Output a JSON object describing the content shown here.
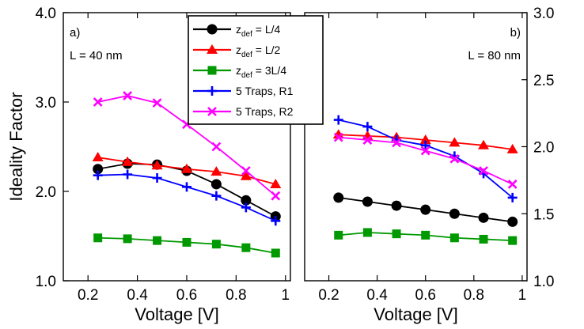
{
  "chart_data": [
    {
      "type": "line",
      "panel_label": "a)",
      "annotation": "L = 40 nm",
      "xlabel": "Voltage [V]",
      "ylabel": "Ideality Factor",
      "xlim": [
        0.1,
        1.02
      ],
      "ylim": [
        1.0,
        4.0
      ],
      "x_ticks": [
        "0.2",
        "0.4",
        "0.6",
        "0.8",
        "1"
      ],
      "y_ticks": [
        "1.0",
        "2.0",
        "3.0",
        "4.0"
      ],
      "x": [
        0.24,
        0.36,
        0.48,
        0.6,
        0.72,
        0.84,
        0.96
      ],
      "series": [
        {
          "name": "zdef = L/4",
          "color": "#000000",
          "marker": "circle",
          "values": [
            2.25,
            2.31,
            2.3,
            2.23,
            2.08,
            1.9,
            1.72
          ]
        },
        {
          "name": "zdef = L/2",
          "color": "#ff0000",
          "marker": "triangle",
          "values": [
            2.38,
            2.33,
            2.29,
            2.25,
            2.22,
            2.17,
            2.08
          ]
        },
        {
          "name": "zdef = 3L/4",
          "color": "#009900",
          "marker": "square",
          "values": [
            1.48,
            1.47,
            1.45,
            1.43,
            1.41,
            1.37,
            1.31
          ]
        },
        {
          "name": "5 Traps, R1",
          "color": "#0000ff",
          "marker": "plus",
          "values": [
            2.18,
            2.19,
            2.15,
            2.05,
            1.95,
            1.82,
            1.67
          ]
        },
        {
          "name": "5 Traps, R2",
          "color": "#ff00ff",
          "marker": "x",
          "values": [
            3.0,
            3.07,
            2.99,
            2.75,
            2.5,
            2.23,
            1.95
          ]
        }
      ]
    },
    {
      "type": "line",
      "panel_label": "b)",
      "annotation": "L = 80 nm",
      "xlabel": "Voltage [V]",
      "ylabel": "",
      "xlim": [
        0.1,
        1.02
      ],
      "ylim": [
        1.0,
        3.0
      ],
      "x_ticks": [
        "0.2",
        "0.4",
        "0.6",
        "0.8",
        "1"
      ],
      "y_ticks": [
        "1.0",
        "1.5",
        "2.0",
        "2.5",
        "3.0"
      ],
      "x": [
        0.24,
        0.36,
        0.48,
        0.6,
        0.72,
        0.84,
        0.96
      ],
      "series": [
        {
          "name": "zdef = L/4",
          "color": "#000000",
          "marker": "circle",
          "values": [
            1.62,
            1.59,
            1.56,
            1.53,
            1.5,
            1.47,
            1.44
          ]
        },
        {
          "name": "zdef = L/2",
          "color": "#ff0000",
          "marker": "triangle",
          "values": [
            2.09,
            2.08,
            2.07,
            2.05,
            2.03,
            2.01,
            1.98
          ]
        },
        {
          "name": "zdef = 3L/4",
          "color": "#009900",
          "marker": "square",
          "values": [
            1.34,
            1.36,
            1.35,
            1.34,
            1.32,
            1.31,
            1.3
          ]
        },
        {
          "name": "5 Traps, R1",
          "color": "#0000ff",
          "marker": "plus",
          "values": [
            2.2,
            2.15,
            2.05,
            2.01,
            1.93,
            1.8,
            1.62
          ]
        },
        {
          "name": "5 Traps, R2",
          "color": "#ff00ff",
          "marker": "x",
          "values": [
            2.07,
            2.05,
            2.03,
            1.97,
            1.91,
            1.82,
            1.72
          ]
        }
      ]
    }
  ],
  "legend": [
    {
      "main": "z",
      "sub": "def",
      "rest": " = L/4",
      "color": "#000000",
      "marker": "circle"
    },
    {
      "main": "z",
      "sub": "def",
      "rest": " = L/2",
      "color": "#ff0000",
      "marker": "triangle"
    },
    {
      "main": "z",
      "sub": "def",
      "rest": " = 3L/4",
      "color": "#009900",
      "marker": "square"
    },
    {
      "main": "5 Traps, R1",
      "sub": "",
      "rest": "",
      "color": "#0000ff",
      "marker": "plus"
    },
    {
      "main": "5 Traps, R2",
      "sub": "",
      "rest": "",
      "color": "#ff00ff",
      "marker": "x"
    }
  ]
}
